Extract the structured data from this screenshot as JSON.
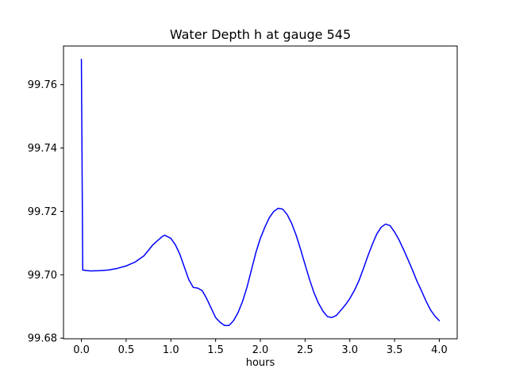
{
  "figure": {
    "background": "#ffffff"
  },
  "chart_data": {
    "type": "line",
    "title": "Water Depth h at gauge 545",
    "xlabel": "hours",
    "ylabel": "",
    "grid": false,
    "legend": "none",
    "xlim": [
      -0.2,
      4.2
    ],
    "ylim": [
      99.6798,
      99.7722
    ],
    "xticks": {
      "values": [
        0.0,
        0.5,
        1.0,
        1.5,
        2.0,
        2.5,
        3.0,
        3.5,
        4.0
      ],
      "labels": [
        "0.0",
        "0.5",
        "1.0",
        "1.5",
        "2.0",
        "2.5",
        "3.0",
        "3.5",
        "4.0"
      ]
    },
    "yticks": {
      "values": [
        99.68,
        99.7,
        99.72,
        99.74,
        99.76
      ],
      "labels": [
        "99.68",
        "99.70",
        "99.72",
        "99.74",
        "99.76"
      ]
    },
    "line_color": "#0000ff",
    "line_width": 1.5,
    "series": [
      {
        "name": "h",
        "x": [
          0.0,
          0.015,
          0.1,
          0.2,
          0.3,
          0.4,
          0.5,
          0.6,
          0.7,
          0.8,
          0.9,
          0.93,
          1.0,
          1.05,
          1.1,
          1.15,
          1.2,
          1.25,
          1.3,
          1.35,
          1.4,
          1.45,
          1.5,
          1.55,
          1.6,
          1.65,
          1.7,
          1.75,
          1.8,
          1.85,
          1.9,
          1.95,
          2.0,
          2.05,
          2.1,
          2.15,
          2.2,
          2.25,
          2.3,
          2.35,
          2.4,
          2.45,
          2.5,
          2.55,
          2.6,
          2.65,
          2.7,
          2.75,
          2.8,
          2.85,
          2.9,
          2.95,
          3.0,
          3.05,
          3.1,
          3.15,
          3.2,
          3.25,
          3.3,
          3.35,
          3.4,
          3.45,
          3.5,
          3.55,
          3.6,
          3.65,
          3.7,
          3.75,
          3.8,
          3.85,
          3.9,
          3.95,
          4.0
        ],
        "y": [
          99.768,
          99.7015,
          99.7012,
          99.7013,
          99.7015,
          99.702,
          99.7028,
          99.704,
          99.706,
          99.7095,
          99.712,
          99.7125,
          99.7115,
          99.7095,
          99.7065,
          99.7025,
          99.6985,
          99.696,
          99.6958,
          99.695,
          99.6925,
          99.6895,
          99.6865,
          99.685,
          99.684,
          99.684,
          99.6855,
          99.688,
          99.6915,
          99.696,
          99.7015,
          99.707,
          99.7115,
          99.715,
          99.718,
          99.72,
          99.721,
          99.7207,
          99.719,
          99.7162,
          99.7125,
          99.708,
          99.7032,
          99.6985,
          99.6943,
          99.691,
          99.6885,
          99.6868,
          99.6865,
          99.6872,
          99.6888,
          99.6905,
          99.6925,
          99.695,
          99.698,
          99.7018,
          99.7058,
          99.7095,
          99.7128,
          99.715,
          99.716,
          99.7155,
          99.7135,
          99.711,
          99.708,
          99.7048,
          99.7015,
          99.698,
          99.695,
          99.6918,
          99.689,
          99.687,
          99.6855
        ]
      }
    ]
  }
}
